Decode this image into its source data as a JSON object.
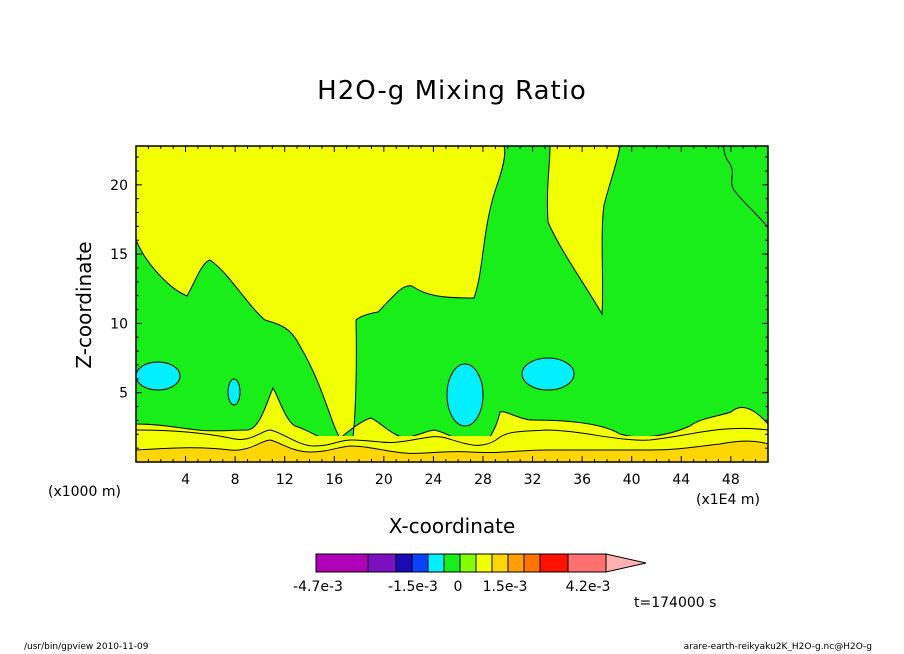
{
  "chart_data": {
    "type": "heatmap",
    "title": "H2O-g Mixing Ratio",
    "xlabel": "X-coordinate",
    "ylabel": "Z-coordinate",
    "x_unit": "(x1000 m)",
    "x_scale_note": "(x1E4 m)",
    "xlim": [
      0,
      51
    ],
    "ylim": [
      0,
      22.8
    ],
    "x_ticks": [
      "4",
      "8",
      "12",
      "16",
      "20",
      "24",
      "28",
      "32",
      "36",
      "40",
      "44",
      "48"
    ],
    "y_ticks": [
      "5",
      "10",
      "15",
      "20"
    ],
    "time": "t=174000 s",
    "colorbar": {
      "colors": [
        "#b000b8",
        "#7a10c0",
        "#1a0ab8",
        "#0a40ff",
        "#00f0ff",
        "#18ee18",
        "#82ff00",
        "#f2ff00",
        "#ffd700",
        "#ffa000",
        "#ff7400",
        "#ff1200",
        "#ff7070",
        "#ffb0b0"
      ],
      "labels": [
        "-4.7e-3",
        "-1.5e-3",
        "0",
        "1.5e-3",
        "4.2e-3"
      ]
    },
    "regions": [
      {
        "level": "yellow",
        "color": "#f2ff00",
        "description": "upper domain background"
      },
      {
        "level": "green",
        "color": "#18ee18",
        "description": "mid-level band with vertical plumes"
      },
      {
        "level": "cyan",
        "color": "#00f0ff",
        "description": "isolated cells near z=4-7 km"
      },
      {
        "level": "orange",
        "color": "#ffd700",
        "description": "surface layer"
      }
    ]
  },
  "footer": {
    "left": "/usr/bin/gpview   2010-11-09",
    "right": "arare-earth-reikyaku2K_H2O-g.nc@H2O-g"
  }
}
